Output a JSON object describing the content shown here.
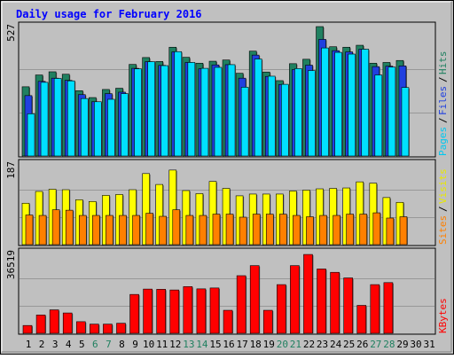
{
  "chart_data": [
    {
      "type": "bar",
      "title": "Daily usage for February 2016",
      "ylabel_max": "527",
      "days": [
        "1",
        "2",
        "3",
        "4",
        "5",
        "6",
        "7",
        "8",
        "9",
        "10",
        "11",
        "12",
        "13",
        "14",
        "15",
        "16",
        "17",
        "18",
        "19",
        "20",
        "21",
        "22",
        "23",
        "24",
        "25",
        "26",
        "27",
        "28",
        "29",
        "30",
        "31"
      ],
      "weekend_days": [
        "6",
        "7",
        "13",
        "14",
        "20",
        "21",
        "27",
        "28"
      ],
      "ylim": [
        0,
        527
      ],
      "series": [
        {
          "name": "Hits",
          "color": "#208060",
          "values": [
            282,
            330,
            343,
            333,
            266,
            238,
            271,
            276,
            373,
            401,
            385,
            443,
            402,
            378,
            386,
            391,
            337,
            427,
            342,
            307,
            376,
            394,
            527,
            445,
            443,
            451,
            378,
            381,
            389,
            null,
            null
          ]
        },
        {
          "name": "Files",
          "color": "#2040e0",
          "values": [
            246,
            304,
            317,
            308,
            250,
            221,
            254,
            260,
            357,
            384,
            369,
            424,
            381,
            355,
            371,
            372,
            317,
            411,
            324,
            291,
            352,
            370,
            475,
            429,
            424,
            435,
            364,
            366,
            367,
            null,
            null
          ]
        },
        {
          "name": "Pages",
          "color": "#00e0ff",
          "values": [
            172,
            300,
            316,
            306,
            234,
            221,
            231,
            254,
            355,
            384,
            368,
            425,
            381,
            357,
            361,
            372,
            280,
            395,
            325,
            292,
            356,
            348,
            440,
            422,
            415,
            435,
            330,
            362,
            279,
            null,
            null
          ]
        }
      ],
      "right_label": [
        "Pages",
        "Files",
        "Hits"
      ]
    },
    {
      "type": "bar",
      "ylabel_max": "187",
      "ylim": [
        0,
        187
      ],
      "series": [
        {
          "name": "Visits",
          "color": "#ffff00",
          "values": [
            95,
            122,
            127,
            126,
            103,
            99,
            113,
            115,
            126,
            163,
            138,
            171,
            124,
            117,
            145,
            129,
            112,
            116,
            116,
            116,
            123,
            125,
            128,
            129,
            130,
            144,
            141,
            108,
            97,
            null,
            null
          ]
        },
        {
          "name": "Sites",
          "color": "#ff8000",
          "values": [
            68,
            67,
            80,
            79,
            67,
            67,
            67,
            67,
            67,
            72,
            65,
            80,
            67,
            67,
            70,
            70,
            63,
            70,
            70,
            70,
            67,
            64,
            67,
            67,
            70,
            70,
            73,
            61,
            64,
            null,
            null
          ]
        }
      ],
      "right_label": [
        "Sites",
        "Visits"
      ]
    },
    {
      "type": "bar",
      "ylabel_max": "36519",
      "ylim": [
        0,
        36519
      ],
      "series": [
        {
          "name": "KBytes",
          "color": "#ff0000",
          "values": [
            3500,
            8200,
            10500,
            9100,
            5200,
            4100,
            4100,
            4500,
            17400,
            19800,
            19700,
            19400,
            20900,
            19900,
            20300,
            10300,
            25800,
            30300,
            10300,
            21800,
            30300,
            35300,
            28800,
            27300,
            24800,
            12500,
            21800,
            22700,
            null,
            null,
            null
          ]
        }
      ],
      "right_label": [
        "KBytes"
      ]
    }
  ]
}
